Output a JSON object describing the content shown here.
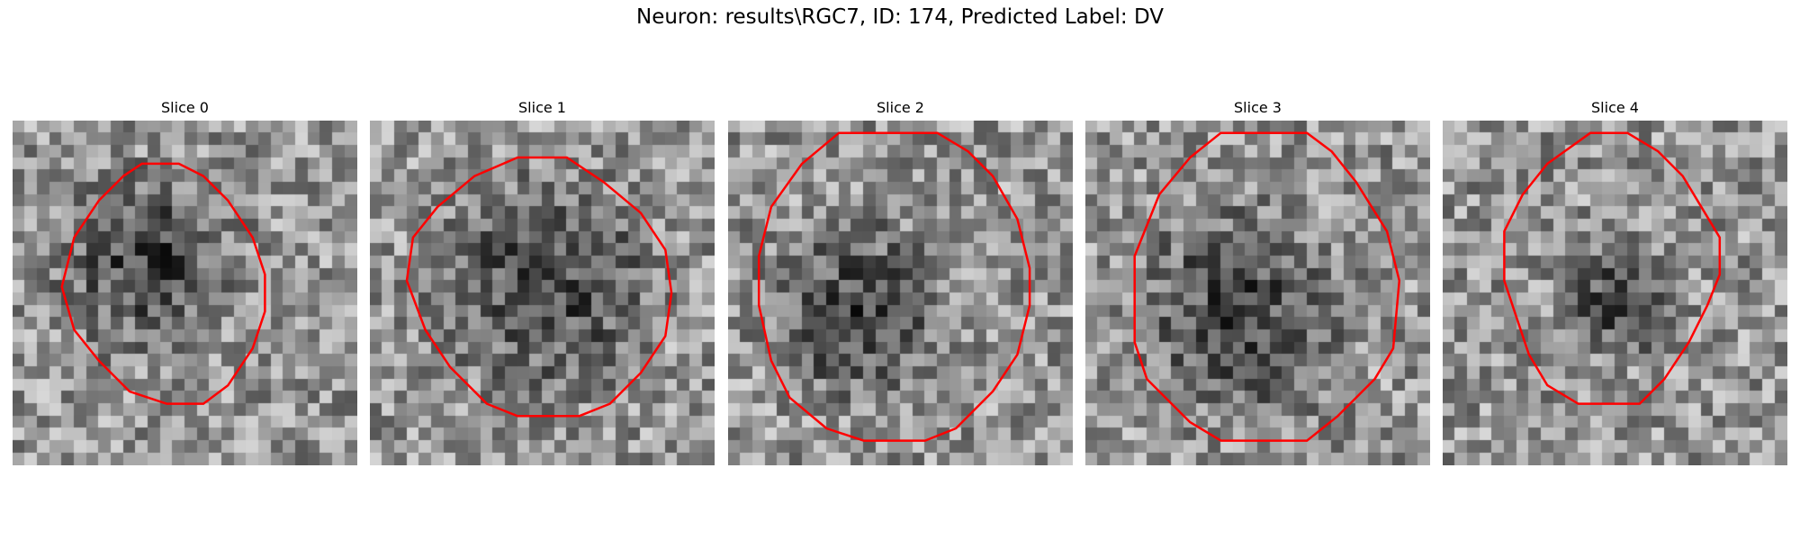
{
  "figure": {
    "title": "Neuron: results\\RGC7, ID: 174, Predicted Label: DV"
  },
  "panels": [
    {
      "title": "Slice 0",
      "contour": [
        [
          10.5,
          3.5
        ],
        [
          13.5,
          3.5
        ],
        [
          15.5,
          4.5
        ],
        [
          17.5,
          6.5
        ],
        [
          19.5,
          9.5
        ],
        [
          20.5,
          12.5
        ],
        [
          20.5,
          15.5
        ],
        [
          19.5,
          18.5
        ],
        [
          17.5,
          21.5
        ],
        [
          15.5,
          23
        ],
        [
          12.5,
          23
        ],
        [
          9.5,
          22
        ],
        [
          7,
          19.5
        ],
        [
          5,
          17
        ],
        [
          4,
          13.5
        ],
        [
          5,
          9.5
        ],
        [
          7,
          6.5
        ],
        [
          9,
          4.5
        ]
      ],
      "dark_center": [
        10.5,
        11
      ],
      "dark_radius": 6
    },
    {
      "title": "Slice 1",
      "contour": [
        [
          12,
          3
        ],
        [
          16,
          3
        ],
        [
          19,
          5
        ],
        [
          22,
          7.5
        ],
        [
          24,
          10.5
        ],
        [
          24.5,
          14
        ],
        [
          24,
          17.5
        ],
        [
          22,
          20.5
        ],
        [
          19.5,
          23
        ],
        [
          17,
          24
        ],
        [
          12,
          24
        ],
        [
          9.5,
          23
        ],
        [
          6.5,
          20
        ],
        [
          4.5,
          17
        ],
        [
          3,
          13
        ],
        [
          3.5,
          9.5
        ],
        [
          5.5,
          7
        ],
        [
          8.5,
          4.5
        ]
      ],
      "dark_center": [
        14,
        13
      ],
      "dark_radius": 7
    },
    {
      "title": "Slice 2",
      "contour": [
        [
          9,
          1
        ],
        [
          17,
          1
        ],
        [
          19.5,
          2.5
        ],
        [
          21.5,
          4.5
        ],
        [
          23.5,
          8
        ],
        [
          24.5,
          12
        ],
        [
          24.5,
          15
        ],
        [
          23.5,
          19
        ],
        [
          21.5,
          22
        ],
        [
          18.5,
          25
        ],
        [
          16,
          26
        ],
        [
          11,
          26
        ],
        [
          8,
          25
        ],
        [
          5,
          22.5
        ],
        [
          3.5,
          19.5
        ],
        [
          2.5,
          15
        ],
        [
          2.5,
          11
        ],
        [
          3.5,
          7
        ],
        [
          6,
          3.5
        ]
      ],
      "dark_center": [
        10,
        15
      ],
      "dark_radius": 6
    },
    {
      "title": "Slice 3",
      "contour": [
        [
          11,
          1
        ],
        [
          18,
          1
        ],
        [
          20,
          2.5
        ],
        [
          22,
          5
        ],
        [
          24.5,
          9
        ],
        [
          25.5,
          13
        ],
        [
          25,
          18.5
        ],
        [
          23.5,
          21
        ],
        [
          20.5,
          24
        ],
        [
          18,
          26
        ],
        [
          11,
          26
        ],
        [
          8.5,
          24.5
        ],
        [
          5,
          21
        ],
        [
          4,
          18
        ],
        [
          4,
          11
        ],
        [
          6,
          6
        ],
        [
          8.5,
          3
        ]
      ],
      "dark_center": [
        12,
        15
      ],
      "dark_radius": 7
    },
    {
      "title": "Slice 4",
      "contour": [
        [
          12,
          1
        ],
        [
          15,
          1
        ],
        [
          17.5,
          2.5
        ],
        [
          19.5,
          4.5
        ],
        [
          21,
          7
        ],
        [
          22.5,
          9.5
        ],
        [
          22.5,
          12.5
        ],
        [
          21.5,
          15
        ],
        [
          20,
          18
        ],
        [
          18,
          21
        ],
        [
          16,
          23
        ],
        [
          11,
          23
        ],
        [
          8.5,
          21.5
        ],
        [
          7,
          19
        ],
        [
          6,
          16
        ],
        [
          5,
          13
        ],
        [
          5,
          9
        ],
        [
          6.5,
          6
        ],
        [
          8.5,
          3.5
        ]
      ],
      "dark_center": [
        14,
        14
      ],
      "dark_radius": 4
    }
  ],
  "colors": {
    "contour": "#ff0000"
  }
}
